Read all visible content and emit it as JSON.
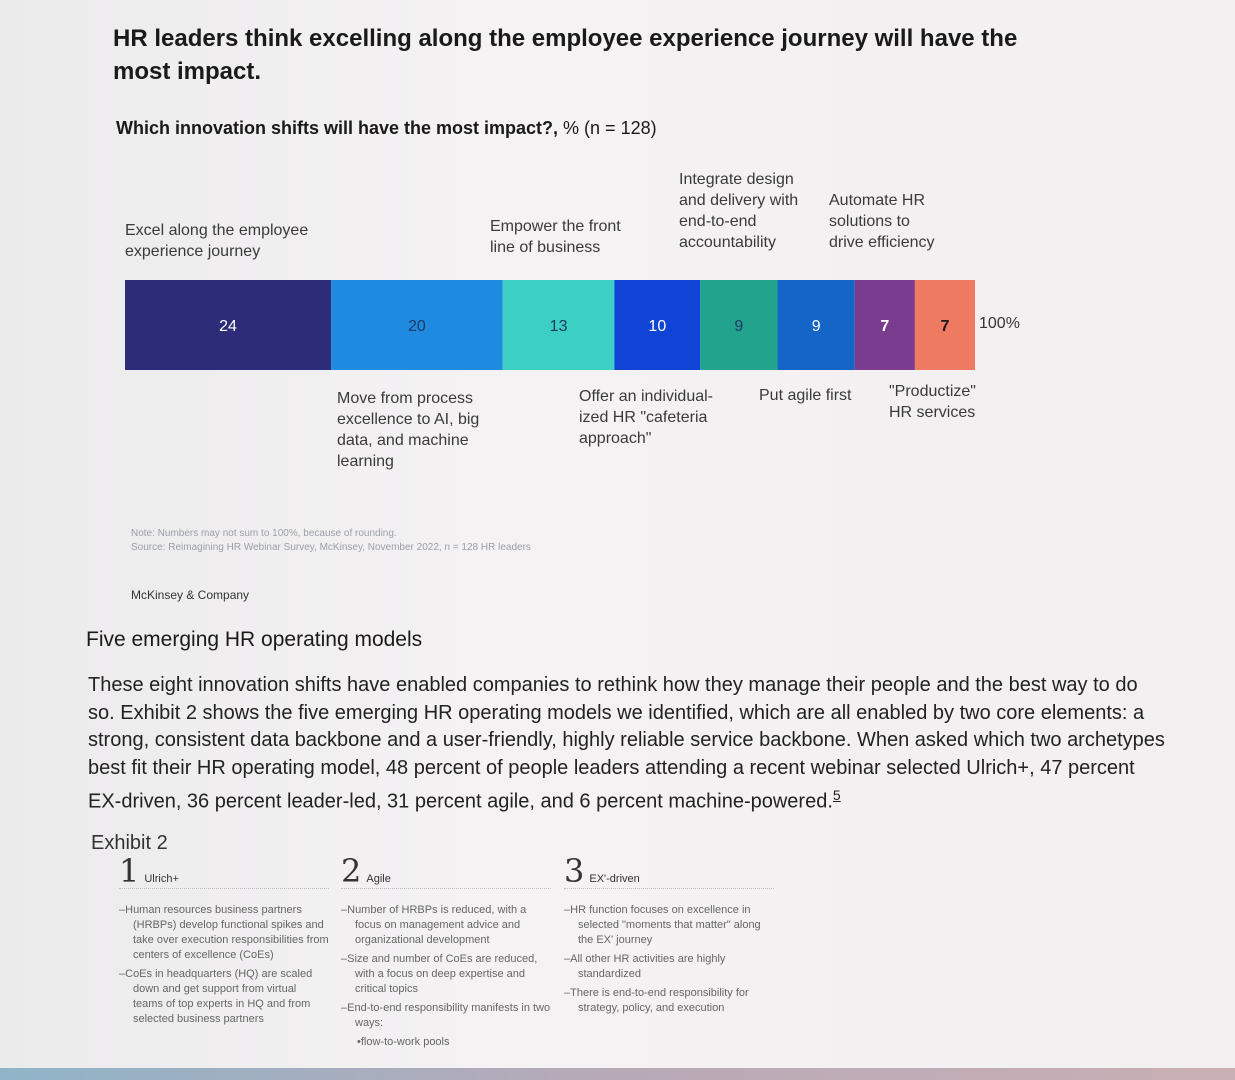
{
  "title": "HR leaders think excelling along the employee experience journey will have the most impact.",
  "subtitle": {
    "bold": "Which innovation shifts will have the most impact?,",
    "rest": " % (n = 128)"
  },
  "chart_data": {
    "type": "bar",
    "subtype": "100% stacked bar",
    "categories": [
      "Excel along the employee experience journey",
      "Move from process excellence to AI, big data, and machine learning",
      "Empower the front line of business",
      "Offer an individual-ized HR \"cafeteria approach\"",
      "Integrate design and delivery with end-to-end accountability",
      "Put agile first",
      "Automate HR solutions to drive efficiency",
      "\"Productize\" HR services"
    ],
    "values": [
      24,
      20,
      13,
      10,
      9,
      9,
      7,
      7
    ],
    "value_labels": [
      "24",
      "20",
      "13",
      "10",
      "9",
      "9",
      "7",
      "7"
    ],
    "total_label": "100%",
    "colors": [
      "#2c2c78",
      "#1e8ae0",
      "#3ccfc4",
      "#1144d6",
      "#22a38e",
      "#1565c8",
      "#7a3c8e",
      "#ef7a62"
    ],
    "label_colors": [
      "#ffffff",
      "#1f3a66",
      "#1f3a66",
      "#ffffff",
      "#1f3a66",
      "#ffffff",
      "#ffffff",
      "#1a1a1a"
    ],
    "ylim": [
      0,
      100
    ]
  },
  "labels_above": [
    {
      "lines": [
        "Excel along the employee",
        "experience journey"
      ]
    },
    {
      "lines": [
        "Empower the front",
        "line of business"
      ]
    },
    {
      "lines": [
        "Integrate design",
        "and delivery with",
        "end-to-end",
        "accountability"
      ]
    },
    {
      "lines": [
        "Automate HR",
        "solutions to",
        "drive efficiency"
      ]
    }
  ],
  "labels_below": [
    {
      "lines": [
        "Move from process",
        "excellence to AI, big",
        "data, and machine",
        "learning"
      ]
    },
    {
      "lines": [
        "Offer an individual-",
        "ized HR \"cafeteria",
        "approach\""
      ]
    },
    {
      "lines": [
        "Put agile first"
      ]
    },
    {
      "lines": [
        "\"Productize\"",
        "HR services"
      ]
    }
  ],
  "note": "Note: Numbers may not sum to 100%, because of rounding.",
  "source": "Source: Reimagining HR Webinar Survey, McKinsey, November 2022, n = 128 HR leaders",
  "brand": "McKinsey & Company",
  "section_heading": "Five emerging HR operating models",
  "paragraph": "These eight innovation shifts have enabled companies to rethink how they manage their people and the best way to do so. Exhibit 2 shows the five emerging HR operating models we identified, which are all enabled by two core elements: a strong, consistent data backbone and a user-friendly, highly reliable service backbone. When asked which two archetypes best fit their HR operating model, 48 percent of people leaders attending a recent webinar selected Ulrich+, 47 percent EX-driven, 36 percent leader-led, 31 percent agile, and 6 percent machine-powered.",
  "footnote": "5",
  "exhibit_label": "Exhibit 2",
  "models": [
    {
      "num": "1",
      "name": "Ulrich+",
      "bullets": [
        "Human resources business partners (HRBPs) develop functional spikes and take over execution responsibilities from centers of excellence (CoEs)",
        "CoEs in headquarters (HQ) are scaled down and get support from virtual teams of top experts in HQ and from selected business partners"
      ]
    },
    {
      "num": "2",
      "name": "Agile",
      "bullets": [
        "Number of HRBPs is reduced, with a focus on management advice and organizational development",
        "Size and number of CoEs are reduced, with a focus on deep expertise and critical topics",
        "End-to-end responsibility manifests in two ways:"
      ],
      "subbullets": [
        "flow-to-work pools"
      ]
    },
    {
      "num": "3",
      "name": "EX'-driven",
      "bullets": [
        "HR function focuses on excellence in selected \"moments that matter\" along the EX' journey",
        "All other HR activities are highly standardized",
        "There is end-to-end responsibility for strategy, policy, and execution"
      ]
    }
  ]
}
